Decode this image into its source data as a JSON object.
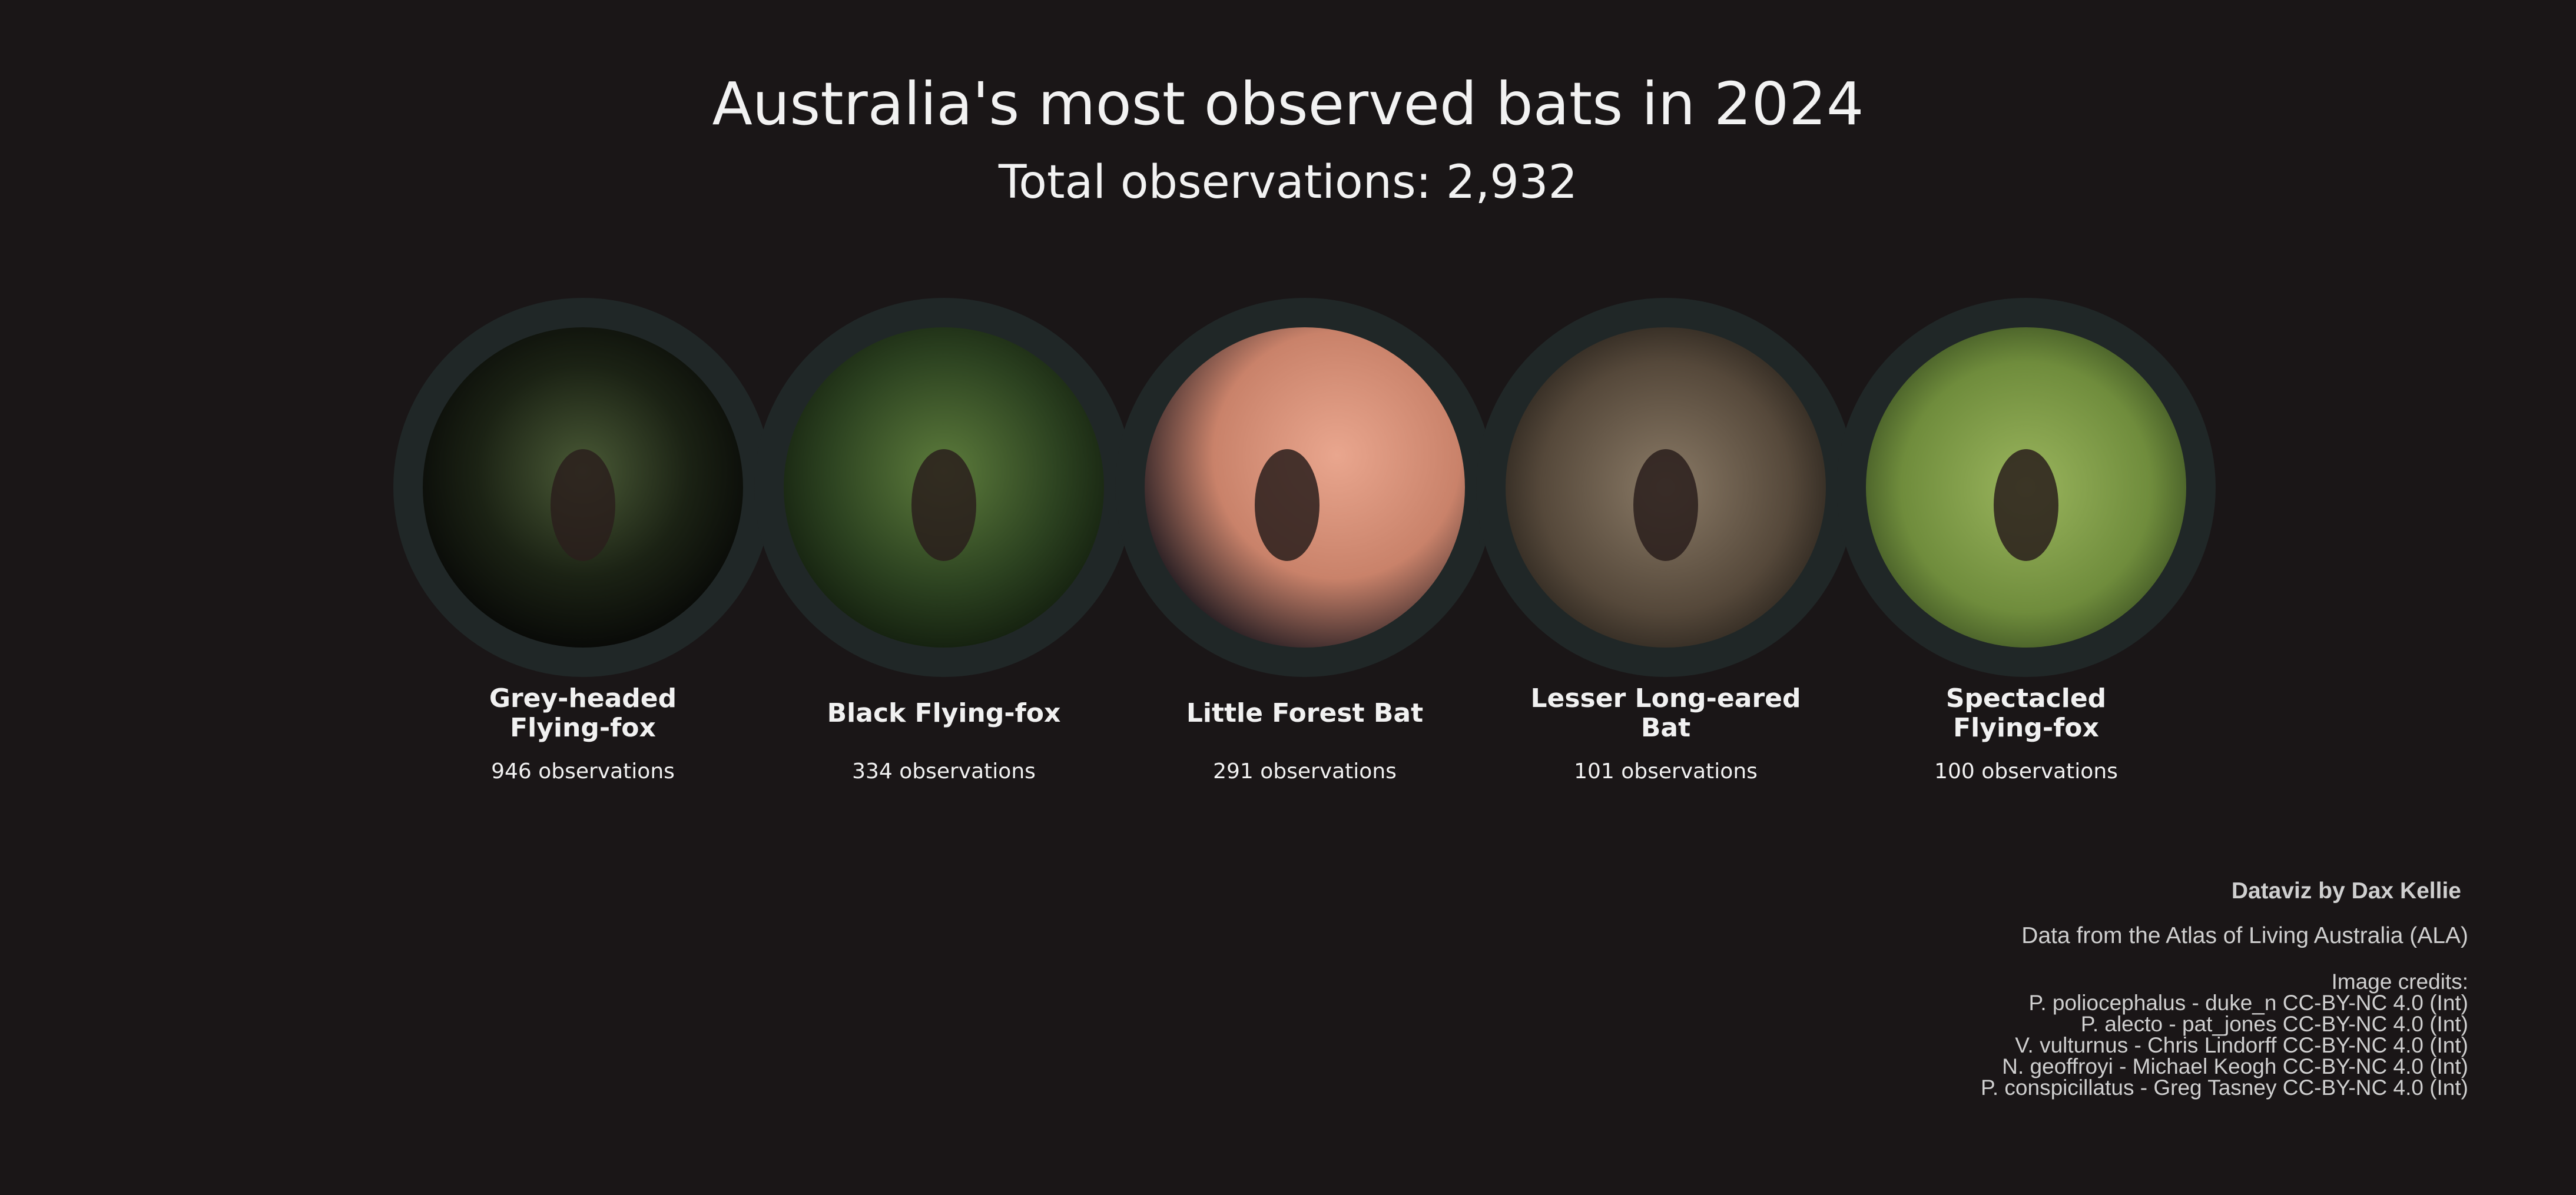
{
  "title": "Australia's most observed bats in 2024",
  "subtitle": "Total observations: 2,932",
  "chart_data": {
    "type": "bar",
    "categories": [
      "Grey-headed Flying-fox",
      "Black Flying-fox",
      "Little Forest Bat",
      "Lesser Long-eared Bat",
      "Spectacled Flying-fox"
    ],
    "values": [
      946,
      334,
      291,
      101,
      100
    ],
    "value_labels": [
      "946 observations",
      "334 observations",
      "291 observations",
      "101 observations",
      "100 observations"
    ],
    "label_lines": [
      [
        "Grey-headed",
        "Flying-fox"
      ],
      [
        "Black Flying-fox"
      ],
      [
        "Little Forest Bat"
      ],
      [
        "Lesser Long-eared",
        "Bat"
      ],
      [
        "Spectacled",
        "Flying-fox"
      ]
    ],
    "photo_subjects": [
      "grey-headed-flying-fox-photo",
      "black-flying-fox-photo",
      "little-forest-bat-photo",
      "lesser-long-eared-bat-photo",
      "spectacled-flying-fox-photo"
    ],
    "colors": {
      "background": "#1a1617",
      "ring": "#202727",
      "text": "#f1f1f1",
      "credits": "#cfcfcf"
    }
  },
  "credits": {
    "author": "Dataviz by Dax Kellie",
    "source": "Data from the Atlas of Living Australia (ALA)",
    "image_credits_title": "Image credits:",
    "image_credits": [
      "P. poliocephalus - duke_n CC-BY-NC 4.0 (Int)",
      "P. alecto - pat_jones CC-BY-NC 4.0 (Int)",
      "V. vulturnus - Chris Lindorff CC-BY-NC 4.0 (Int)",
      "N. geoffroyi - Michael Keogh CC-BY-NC 4.0 (Int)",
      "P. conspicillatus - Greg Tasney CC-BY-NC 4.0 (Int)"
    ]
  }
}
